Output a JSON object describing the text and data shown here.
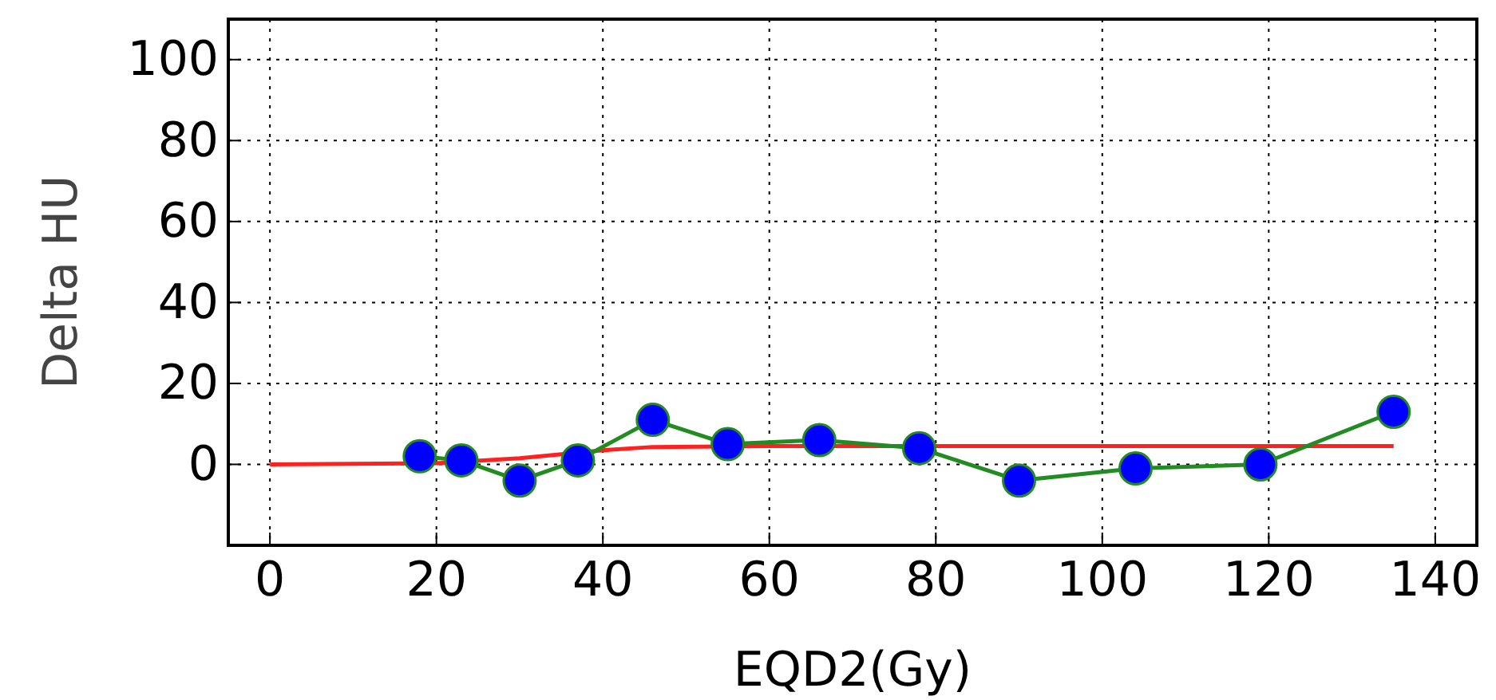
{
  "chart_data": {
    "type": "line",
    "xlabel": "EQD2(Gy)",
    "ylabel": "Delta HU",
    "xlim": [
      -5,
      145
    ],
    "ylim": [
      -20,
      110
    ],
    "xticks": [
      0,
      20,
      40,
      60,
      80,
      100,
      120,
      140
    ],
    "yticks": [
      0,
      20,
      40,
      60,
      80,
      100
    ],
    "grid": true,
    "series": [
      {
        "color": "#ff2020",
        "marker": "none",
        "x": [
          0,
          20,
          30,
          40,
          46,
          60,
          135
        ],
        "values": [
          0,
          0.3,
          1.5,
          3.5,
          4.3,
          4.5,
          4.5
        ]
      },
      {
        "color": "#228b22",
        "marker": "circle",
        "x": [
          18,
          23,
          30,
          37,
          46,
          55,
          66,
          78,
          90,
          104,
          119,
          135
        ],
        "values": [
          2,
          1,
          -4,
          1,
          11,
          5,
          6,
          4,
          -4,
          -1,
          0,
          13
        ]
      }
    ]
  }
}
